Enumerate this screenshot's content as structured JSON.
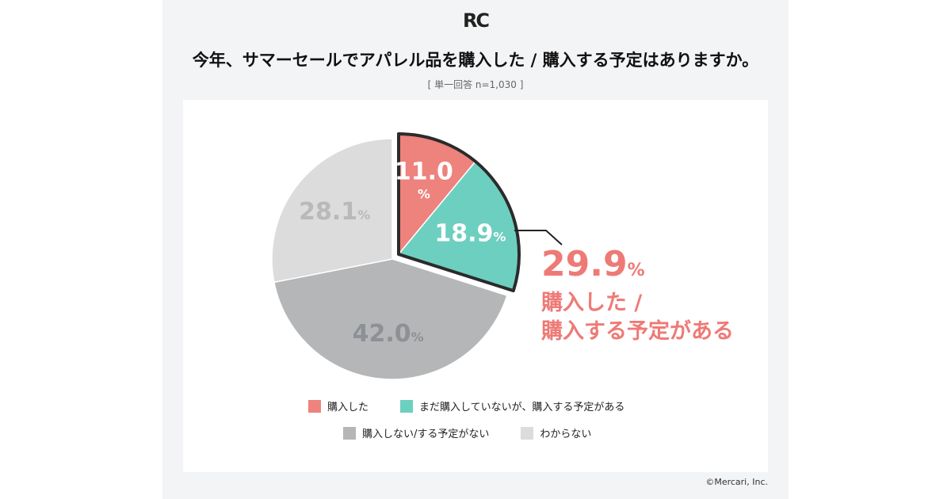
{
  "header": {
    "logo": "RC",
    "title": "今年、サマーセールでアパレル品を購入した / 購入する予定はありますか。",
    "subtitle": "[ 単一回答 n=1,030 ]"
  },
  "chart_data": {
    "type": "pie",
    "slices": [
      {
        "label": "購入した",
        "value": 11.0,
        "color": "#ee827c",
        "display": "11.0"
      },
      {
        "label": "まだ購入していないが、購入する予定がある",
        "value": 18.9,
        "color": "#6dcfbf",
        "display": "18.9"
      },
      {
        "label": "購入しない/する予定がない",
        "value": 42.0,
        "color": "#b4b6b8",
        "display": "42.0"
      },
      {
        "label": "わからない",
        "value": 28.1,
        "color": "#dcdcdc",
        "display": "28.1"
      }
    ],
    "unit": "%",
    "exploded_group": [
      0,
      1
    ],
    "callout": {
      "value": "29.9",
      "unit": "%",
      "line1": "購入した /",
      "line2": "購入する予定がある"
    }
  },
  "footer": {
    "copyright": "©Mercari, Inc."
  }
}
